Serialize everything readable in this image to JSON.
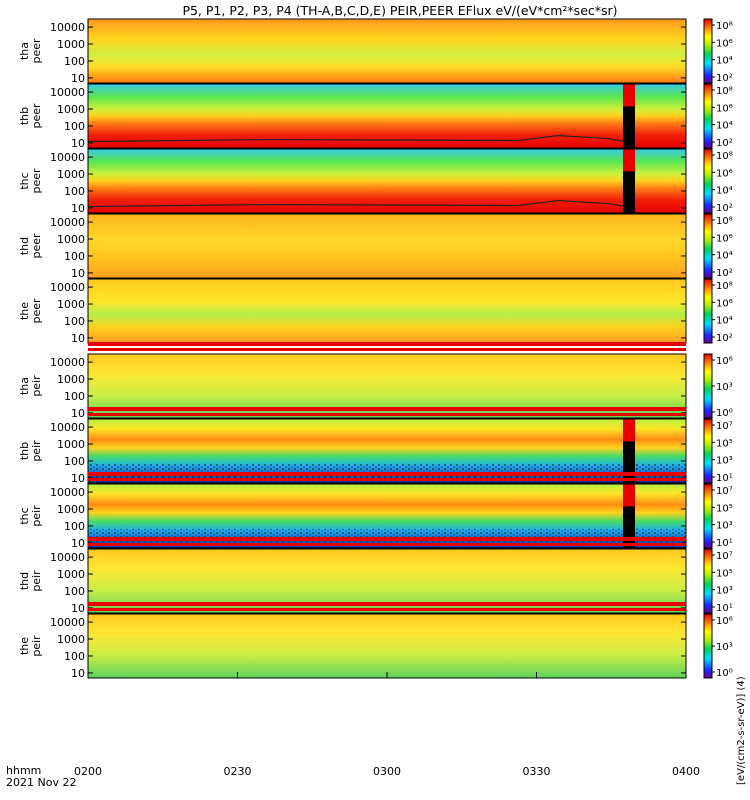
{
  "title": "P5, P1, P2, P3, P4 (TH-A,B,C,D,E) PEIR,PEER EFlux eV/(eV*cm²*sec*sr)",
  "footer": {
    "time_label": "hhmm",
    "date_label": "2021 Nov 22"
  },
  "colorbar_unit_label": "[eV/(cm2-s-sr-eV)] (4)",
  "chart_data": [
    {
      "type": "heatmap",
      "ylabel": [
        "tha",
        "peer"
      ],
      "y_ticks": [
        "10000",
        "1000",
        "100",
        "10"
      ],
      "cbar_ticks": [
        "10⁸",
        "10⁶",
        "10⁴",
        "10²"
      ],
      "yscale": "log",
      "ylim": [
        5,
        30000
      ],
      "xlabel": ""
    },
    {
      "type": "heatmap",
      "ylabel": [
        "thb",
        "peer"
      ],
      "y_ticks": [
        "10000",
        "1000",
        "100",
        "10"
      ],
      "cbar_ticks": [
        "10⁸",
        "10⁶",
        "10⁴",
        "10²"
      ],
      "yscale": "log",
      "ylim": [
        5,
        30000
      ],
      "xlabel": ""
    },
    {
      "type": "heatmap",
      "ylabel": [
        "thc",
        "peer"
      ],
      "y_ticks": [
        "10000",
        "1000",
        "100",
        "10"
      ],
      "cbar_ticks": [
        "10⁸",
        "10⁶",
        "10⁴",
        "10²"
      ],
      "yscale": "log",
      "ylim": [
        5,
        30000
      ],
      "xlabel": ""
    },
    {
      "type": "heatmap",
      "ylabel": [
        "thd",
        "peer"
      ],
      "y_ticks": [
        "10000",
        "1000",
        "100",
        "10"
      ],
      "cbar_ticks": [
        "10⁸",
        "10⁶",
        "10⁴",
        "10²"
      ],
      "yscale": "log",
      "ylim": [
        5,
        30000
      ],
      "xlabel": ""
    },
    {
      "type": "heatmap",
      "ylabel": [
        "the",
        "peer"
      ],
      "y_ticks": [
        "10000",
        "1000",
        "100",
        "10"
      ],
      "cbar_ticks": [
        "10⁸",
        "10⁶",
        "10⁴",
        "10²"
      ],
      "yscale": "log",
      "ylim": [
        5,
        30000
      ],
      "xlabel": ""
    },
    {
      "type": "heatmap",
      "ylabel": [
        "tha",
        "peir"
      ],
      "y_ticks": [
        "10000",
        "1000",
        "100",
        "10"
      ],
      "cbar_ticks": [
        "10⁶",
        "10³",
        "10⁰"
      ],
      "yscale": "log",
      "ylim": [
        5,
        30000
      ],
      "xlabel": ""
    },
    {
      "type": "heatmap",
      "ylabel": [
        "thb",
        "peir"
      ],
      "y_ticks": [
        "10000",
        "1000",
        "100",
        "10"
      ],
      "cbar_ticks": [
        "10⁷",
        "10⁵",
        "10³",
        "10¹"
      ],
      "yscale": "log",
      "ylim": [
        5,
        30000
      ],
      "xlabel": ""
    },
    {
      "type": "heatmap",
      "ylabel": [
        "thc",
        "peir"
      ],
      "y_ticks": [
        "10000",
        "1000",
        "100",
        "10"
      ],
      "cbar_ticks": [
        "10⁷",
        "10⁵",
        "10³",
        "10¹"
      ],
      "yscale": "log",
      "ylim": [
        5,
        30000
      ],
      "xlabel": ""
    },
    {
      "type": "heatmap",
      "ylabel": [
        "thd",
        "peir"
      ],
      "y_ticks": [
        "10000",
        "1000",
        "100",
        "10"
      ],
      "cbar_ticks": [
        "10⁷",
        "10⁵",
        "10³",
        "10¹"
      ],
      "yscale": "log",
      "ylim": [
        5,
        30000
      ],
      "xlabel": ""
    },
    {
      "type": "heatmap",
      "ylabel": [
        "the",
        "peir"
      ],
      "y_ticks": [
        "10000",
        "1000",
        "100",
        "10"
      ],
      "cbar_ticks": [
        "10⁶",
        "10³",
        "10⁰"
      ],
      "yscale": "log",
      "ylim": [
        5,
        30000
      ],
      "xlabel": ""
    }
  ],
  "x_axis": {
    "ticks": [
      "0200",
      "0230",
      "0300",
      "0330",
      "0400"
    ],
    "range": [
      "02:00",
      "04:00"
    ]
  }
}
